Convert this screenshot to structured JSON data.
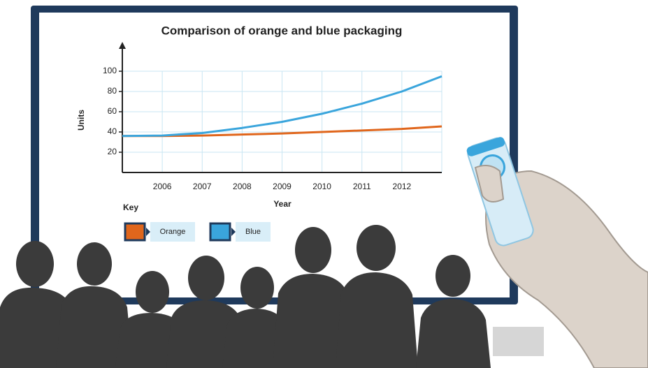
{
  "chart_data": {
    "type": "line",
    "title": "Comparison of orange and blue packaging",
    "x_label": "Year",
    "y_label": "Units",
    "legend_title": "Key",
    "x": [
      2005,
      2006,
      2007,
      2008,
      2009,
      2010,
      2011,
      2012,
      2013
    ],
    "series": [
      {
        "name": "Orange",
        "color": "#e0661c",
        "values": [
          36,
          36,
          36.5,
          37.5,
          38.5,
          40,
          41.5,
          43,
          45.5
        ]
      },
      {
        "name": "Blue",
        "color": "#3aa5dc",
        "values": [
          36,
          36.5,
          39,
          44,
          50,
          58,
          68,
          80,
          95
        ]
      }
    ],
    "xlim": [
      2005,
      2013
    ],
    "xticks": [
      2006,
      2007,
      2008,
      2009,
      2010,
      2011,
      2012
    ],
    "ylim": [
      0,
      100
    ],
    "yticks": [
      20,
      40,
      60,
      80,
      100
    ],
    "grid": true
  }
}
